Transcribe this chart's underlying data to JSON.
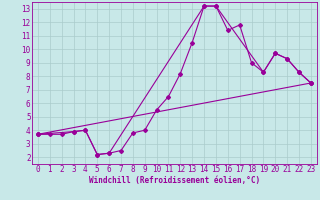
{
  "title": "",
  "xlabel": "Windchill (Refroidissement éolien,°C)",
  "ylabel": "",
  "bg_color": "#c8e8e8",
  "line_color": "#990099",
  "grid_color": "#aacccc",
  "xlim": [
    -0.5,
    23.5
  ],
  "ylim": [
    1.5,
    13.5
  ],
  "xticks": [
    0,
    1,
    2,
    3,
    4,
    5,
    6,
    7,
    8,
    9,
    10,
    11,
    12,
    13,
    14,
    15,
    16,
    17,
    18,
    19,
    20,
    21,
    22,
    23
  ],
  "yticks": [
    2,
    3,
    4,
    5,
    6,
    7,
    8,
    9,
    10,
    11,
    12,
    13
  ],
  "series1_x": [
    0,
    1,
    2,
    3,
    4,
    5,
    6,
    7,
    8,
    9,
    10,
    11,
    12,
    13,
    14,
    15,
    16,
    17,
    18,
    19,
    20,
    21,
    22,
    23
  ],
  "series1_y": [
    3.7,
    3.7,
    3.7,
    3.9,
    4.0,
    2.2,
    2.3,
    2.5,
    3.8,
    4.0,
    5.5,
    6.5,
    8.2,
    10.5,
    13.2,
    13.2,
    11.4,
    11.8,
    9.0,
    8.3,
    9.7,
    9.3,
    8.3,
    7.5
  ],
  "series2_x": [
    0,
    3,
    4,
    5,
    6,
    14,
    15,
    19,
    20,
    21,
    22,
    23
  ],
  "series2_y": [
    3.7,
    3.9,
    4.0,
    2.2,
    2.3,
    13.2,
    13.2,
    8.3,
    9.7,
    9.3,
    8.3,
    7.5
  ],
  "series3_x": [
    0,
    23
  ],
  "series3_y": [
    3.7,
    7.5
  ],
  "marker": "D",
  "marker_size": 2.0,
  "line_width": 0.8,
  "xlabel_fontsize": 5.5,
  "tick_fontsize": 5.5,
  "font_family": "monospace"
}
